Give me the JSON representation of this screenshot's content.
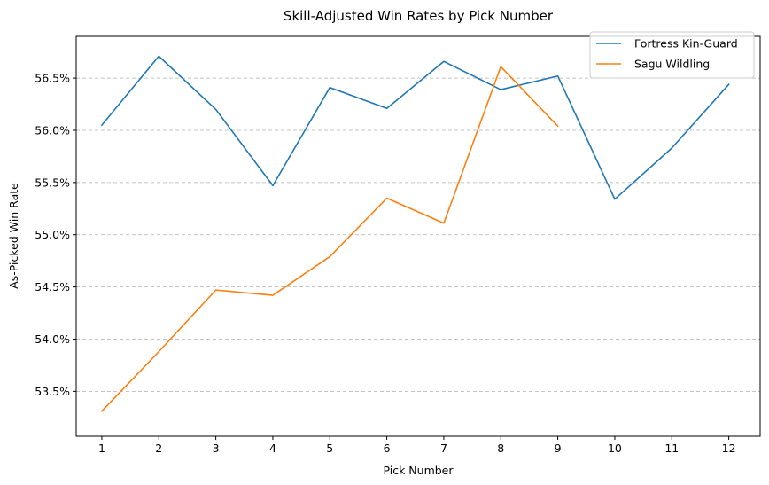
{
  "chart_data": {
    "type": "line",
    "title": "Skill-Adjusted Win Rates by Pick Number",
    "xlabel": "Pick Number",
    "ylabel": "As-Picked Win Rate",
    "x": [
      1,
      2,
      3,
      4,
      5,
      6,
      7,
      8,
      9,
      10,
      11,
      12
    ],
    "x_tick_labels": [
      "1",
      "2",
      "3",
      "4",
      "5",
      "6",
      "7",
      "8",
      "9",
      "10",
      "11",
      "12"
    ],
    "xlim": [
      0.55,
      12.55
    ],
    "ylim": [
      53.07,
      56.9
    ],
    "y_ticks": [
      53.5,
      54.0,
      54.5,
      55.0,
      55.5,
      56.0,
      56.5
    ],
    "y_tick_labels": [
      "53.5%",
      "54.0%",
      "54.5%",
      "55.0%",
      "55.5%",
      "56.0%",
      "56.5%"
    ],
    "grid": "y, dashed",
    "legend_position": "top-right",
    "series": [
      {
        "name": "Fortress Kin-Guard",
        "color": "#1f77b4",
        "x": [
          1,
          2,
          3,
          4,
          5,
          6,
          7,
          8,
          9,
          10,
          11,
          12
        ],
        "values": [
          56.05,
          56.71,
          56.2,
          55.47,
          56.41,
          56.21,
          56.66,
          56.39,
          56.52,
          55.34,
          55.83,
          56.44
        ]
      },
      {
        "name": "Sagu Wildling",
        "color": "#ff7f0e",
        "x": [
          1,
          2,
          3,
          4,
          5,
          6,
          7,
          8,
          9
        ],
        "values": [
          53.31,
          53.88,
          54.47,
          54.42,
          54.79,
          55.35,
          55.11,
          56.61,
          56.04
        ]
      }
    ]
  }
}
